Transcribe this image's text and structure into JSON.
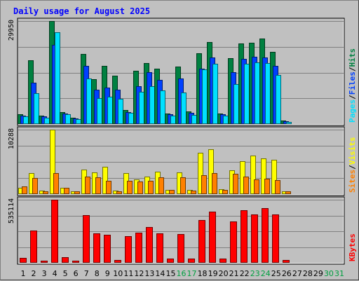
{
  "chart_data": {
    "type": "bar",
    "title": "Daily usage for August 2025",
    "categories": [
      "1",
      "2",
      "3",
      "4",
      "5",
      "6",
      "7",
      "8",
      "9",
      "10",
      "11",
      "12",
      "13",
      "14",
      "15",
      "16",
      "17",
      "18",
      "19",
      "20",
      "21",
      "22",
      "23",
      "24",
      "25",
      "26",
      "27",
      "28",
      "29",
      "30",
      "31"
    ],
    "weekend_days": [
      "16",
      "17",
      "23",
      "24",
      "30",
      "31"
    ],
    "panels": [
      {
        "name": "hits-files-pages",
        "ymax_label": "29950",
        "ylim": [
          0,
          29950
        ],
        "legend": [
          "Pages",
          "/",
          "Files",
          "/",
          "Hits"
        ],
        "series": [
          {
            "name": "Hits",
            "color": "#008040",
            "values": [
              2800,
              18500,
              2400,
              29950,
              3500,
              1800,
              20400,
              13000,
              17000,
              14000,
              4000,
              15500,
              17700,
              16000,
              3000,
              16800,
              3600,
              20600,
              23900,
              3000,
              19100,
              23500,
              23600,
              24800,
              21000,
              1000,
              0,
              0,
              0,
              0,
              0
            ]
          },
          {
            "name": "Files",
            "color": "#0040ff",
            "values": [
              2500,
              12000,
              2200,
              23000,
              3100,
              1600,
              17000,
              10000,
              10500,
              10000,
              3500,
              11000,
              15000,
              12800,
              2800,
              13200,
              3200,
              16000,
              19300,
              2800,
              15000,
              19000,
              19500,
              19300,
              16900,
              800,
              0,
              0,
              0,
              0,
              0
            ]
          },
          {
            "name": "Pages",
            "color": "#00e0ff",
            "values": [
              2200,
              9000,
              1800,
              26700,
              2800,
              1400,
              13300,
              7500,
              8000,
              7300,
              3300,
              9300,
              11000,
              9800,
              2500,
              9200,
              2600,
              15800,
              17600,
              2500,
              11700,
              17500,
              18000,
              17700,
              14300,
              700,
              0,
              0,
              0,
              0,
              0
            ]
          }
        ]
      },
      {
        "name": "visits-sites",
        "ymax_label": "10288",
        "ylim": [
          0,
          10288
        ],
        "legend": [
          "Sites",
          "/",
          "Visits"
        ],
        "series": [
          {
            "name": "Visits",
            "color": "#ffff00",
            "values": [
              1000,
              3400,
              600,
              10288,
              1000,
              400,
              3900,
              3500,
              4400,
              600,
              3400,
              2400,
              2800,
              3600,
              700,
              3500,
              700,
              6600,
              7200,
              800,
              3800,
              5200,
              6200,
              5700,
              5500,
              400,
              0,
              0,
              0,
              0,
              0
            ]
          },
          {
            "name": "Sites",
            "color": "#ff8000",
            "values": [
              1200,
              2600,
              500,
              3300,
              1000,
              400,
              2800,
              2700,
              2100,
              500,
              2100,
              2000,
              2100,
              2700,
              700,
              2700,
              600,
              3000,
              3400,
              700,
              3200,
              2800,
              2300,
              2500,
              2200,
              400,
              0,
              0,
              0,
              0,
              0
            ]
          }
        ]
      },
      {
        "name": "kbytes",
        "ymax_label": "535114",
        "ylim": [
          0,
          535114
        ],
        "legend": [
          "KBytes"
        ],
        "series": [
          {
            "name": "KBytes",
            "color": "#ff0000",
            "values": [
              40000,
              275000,
              20000,
              535114,
              48000,
              20000,
              405000,
              250000,
              240000,
              22000,
              225000,
              258000,
              305000,
              250000,
              35000,
              243000,
              35000,
              360000,
              432000,
              35000,
              348000,
              445000,
              412000,
              465000,
              412000,
              26000,
              0,
              0,
              0,
              0,
              0
            ]
          }
        ]
      }
    ]
  }
}
